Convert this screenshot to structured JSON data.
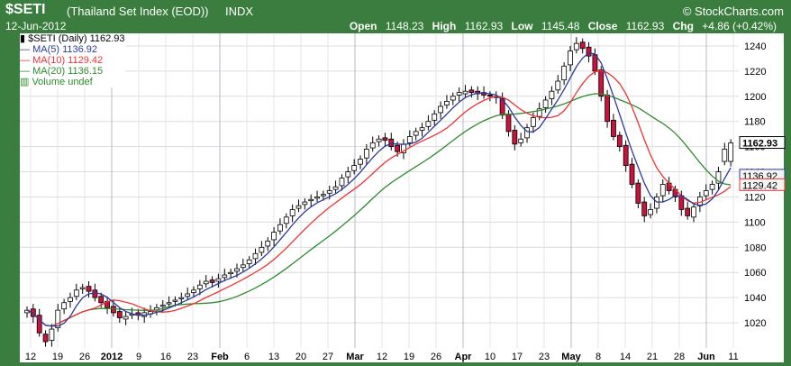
{
  "header": {
    "symbol": "$SETI",
    "name": "(Thailand Set Index (EOD))",
    "exchange": "INDX",
    "brand": "© StockCharts.com",
    "date": "12-Jun-2012",
    "open_label": "Open",
    "open": "1148.23",
    "high_label": "High",
    "high": "1162.93",
    "low_label": "Low",
    "low": "1145.48",
    "close_label": "Close",
    "close": "1162.93",
    "chg_label": "Chg",
    "chg": "+4.86 (+0.42%)"
  },
  "legend": {
    "main": "$SETI (Daily) 1162.93",
    "ma5": "MA(5) 1136.92",
    "ma10": "MA(10) 1129.42",
    "ma20": "MA(20) 1136.15",
    "volume": "Volume undef"
  },
  "colors": {
    "frame": "#3b7d3e",
    "up": "#ffffff",
    "down": "#c8143c",
    "ma5": "#2b3a9a",
    "ma10": "#ee3333",
    "ma20": "#2e8b2e"
  },
  "chart_data": {
    "type": "candlestick",
    "ylim": [
      1000,
      1250
    ],
    "y_ticks": [
      1020,
      1040,
      1060,
      1080,
      1100,
      1120,
      1140,
      1160,
      1180,
      1200,
      1220,
      1240
    ],
    "x_tick_labels": [
      "12",
      "19",
      "26",
      "2012",
      "9",
      "16",
      "23",
      "Feb",
      "6",
      "13",
      "20",
      "27",
      "Mar",
      "12",
      "19",
      "26",
      "Apr",
      "10",
      "17",
      "23",
      "May",
      "8",
      "14",
      "21",
      "28",
      "Jun",
      "11"
    ],
    "y_tags": [
      {
        "label": "1162.93",
        "value": 1162.93,
        "style": "close"
      },
      {
        "label": "1136.92",
        "value": 1136.92,
        "style": "ma5"
      },
      {
        "label": "1129.42",
        "value": 1129.42,
        "style": "ma10"
      }
    ],
    "closes": [
      1030,
      1025,
      1012,
      1005,
      1015,
      1030,
      1036,
      1040,
      1046,
      1048,
      1045,
      1040,
      1036,
      1032,
      1028,
      1024,
      1025,
      1027,
      1026,
      1028,
      1029,
      1032,
      1034,
      1036,
      1038,
      1040,
      1043,
      1046,
      1050,
      1053,
      1052,
      1055,
      1058,
      1060,
      1063,
      1066,
      1070,
      1075,
      1080,
      1085,
      1092,
      1098,
      1104,
      1110,
      1113,
      1116,
      1118,
      1120,
      1122,
      1125,
      1128,
      1135,
      1140,
      1145,
      1150,
      1158,
      1163,
      1166,
      1165,
      1160,
      1156,
      1162,
      1168,
      1172,
      1175,
      1180,
      1186,
      1192,
      1196,
      1200,
      1203,
      1204,
      1203,
      1202,
      1201,
      1200,
      1199,
      1185,
      1172,
      1162,
      1166,
      1175,
      1183,
      1190,
      1197,
      1204,
      1212,
      1224,
      1236,
      1242,
      1238,
      1232,
      1220,
      1200,
      1180,
      1168,
      1160,
      1145,
      1130,
      1115,
      1105,
      1110,
      1120,
      1130,
      1125,
      1120,
      1110,
      1105,
      1112,
      1120,
      1125,
      1130,
      1140,
      1158,
      1162.93
    ],
    "opens": [
      1028,
      1031,
      1026,
      1011,
      1006,
      1016,
      1031,
      1037,
      1041,
      1047,
      1049,
      1046,
      1041,
      1037,
      1033,
      1029,
      1023,
      1026,
      1028,
      1025,
      1027,
      1030,
      1033,
      1035,
      1037,
      1039,
      1041,
      1044,
      1047,
      1051,
      1054,
      1053,
      1056,
      1059,
      1061,
      1064,
      1067,
      1071,
      1076,
      1081,
      1086,
      1093,
      1099,
      1105,
      1111,
      1114,
      1117,
      1119,
      1121,
      1123,
      1126,
      1129,
      1136,
      1141,
      1146,
      1151,
      1159,
      1164,
      1167,
      1166,
      1161,
      1155,
      1163,
      1169,
      1173,
      1176,
      1181,
      1187,
      1193,
      1197,
      1201,
      1202,
      1205,
      1204,
      1203,
      1201,
      1200,
      1198,
      1186,
      1173,
      1163,
      1167,
      1176,
      1184,
      1191,
      1198,
      1205,
      1213,
      1225,
      1237,
      1243,
      1239,
      1233,
      1221,
      1201,
      1181,
      1169,
      1161,
      1146,
      1131,
      1116,
      1106,
      1111,
      1121,
      1131,
      1126,
      1121,
      1111,
      1104,
      1113,
      1121,
      1126,
      1131,
      1148.23,
      1148.23
    ]
  }
}
